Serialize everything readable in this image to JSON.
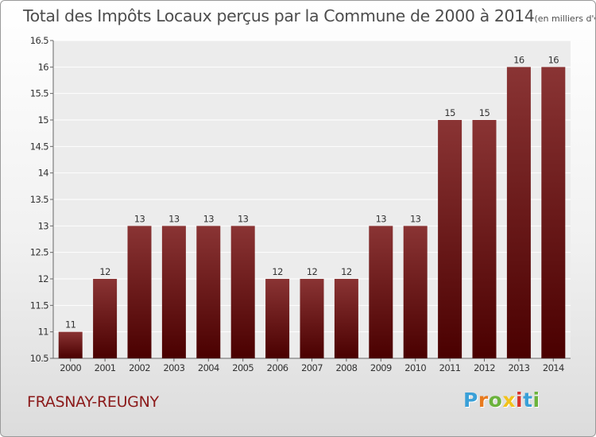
{
  "title": "Total des Impôts Locaux perçus par la Commune de 2000 à 2014",
  "subtitle": "(en milliers d'€)",
  "commune": "FRASNAY-REUGNY",
  "logo": {
    "text": "Proxiti",
    "colors": [
      "#3aa0d8",
      "#e87a1e",
      "#6bb33c",
      "#f2c21b",
      "#d8322a",
      "#3aa0d8",
      "#6bb33c"
    ]
  },
  "colors": {
    "bar_light": "#8a3434",
    "bar_dark": "#4a0000",
    "text": "#4d4d4d",
    "commune": "#8b1a1a"
  },
  "chart_data": {
    "type": "bar",
    "categories": [
      "2000",
      "2001",
      "2002",
      "2003",
      "2004",
      "2005",
      "2006",
      "2007",
      "2008",
      "2009",
      "2010",
      "2011",
      "2012",
      "2013",
      "2014"
    ],
    "values": [
      11,
      12,
      13,
      13,
      13,
      13,
      12,
      12,
      12,
      13,
      13,
      15,
      15,
      16,
      16
    ],
    "value_labels": [
      "11",
      "12",
      "13",
      "13",
      "13",
      "13",
      "12",
      "12",
      "12",
      "13",
      "13",
      "15",
      "15",
      "16",
      "16"
    ],
    "ylim": [
      10.5,
      16.5
    ],
    "yticks": [
      "10.5",
      "11",
      "11.5",
      "12",
      "12.5",
      "13",
      "13.5",
      "14",
      "14.5",
      "15",
      "15.5",
      "16",
      "16.5"
    ],
    "grid": true
  }
}
